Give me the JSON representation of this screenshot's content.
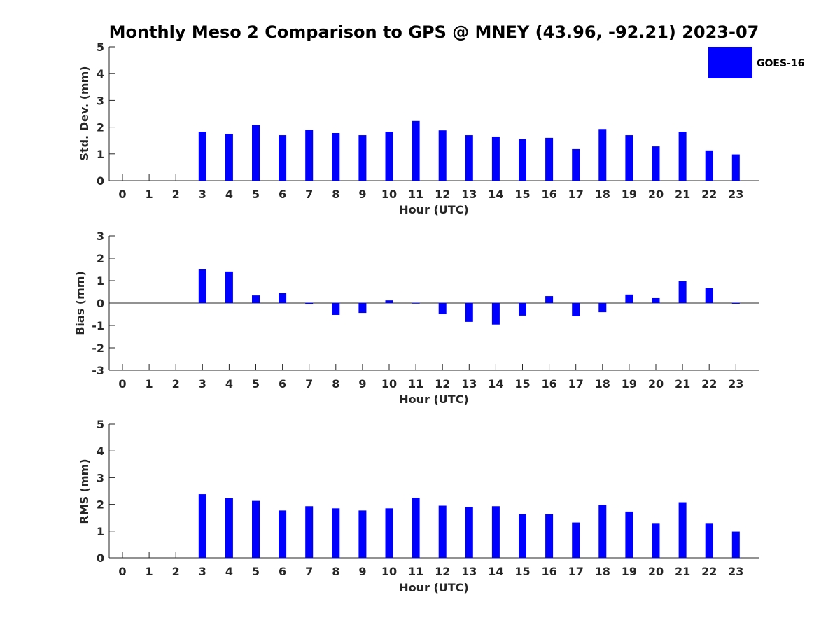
{
  "title": "Monthly Meso 2 Comparison to GPS @ MNEY (43.96, -92.21) 2023-07",
  "legend": {
    "label": "GOES-16",
    "color": "#0000ff"
  },
  "bar_color": "#0000ff",
  "chart_data": [
    {
      "type": "bar",
      "ylabel": "Std. Dev. (mm)",
      "xlabel": "Hour (UTC)",
      "ylim": [
        0,
        5
      ],
      "yticks": [
        0,
        1,
        2,
        3,
        4,
        5
      ],
      "categories": [
        "0",
        "1",
        "2",
        "3",
        "4",
        "5",
        "6",
        "7",
        "8",
        "9",
        "10",
        "11",
        "12",
        "13",
        "14",
        "15",
        "16",
        "17",
        "18",
        "19",
        "20",
        "21",
        "22",
        "23"
      ],
      "series": [
        {
          "name": "GOES-16",
          "values": [
            null,
            null,
            null,
            1.83,
            1.75,
            2.08,
            1.7,
            1.9,
            1.78,
            1.7,
            1.83,
            2.23,
            1.88,
            1.7,
            1.65,
            1.55,
            1.6,
            1.18,
            1.93,
            1.7,
            1.28,
            1.83,
            1.13,
            0.98
          ]
        }
      ]
    },
    {
      "type": "bar",
      "ylabel": "Bias (mm)",
      "xlabel": "Hour (UTC)",
      "ylim": [
        -3,
        3
      ],
      "yticks": [
        -3,
        -2,
        -1,
        0,
        1,
        2,
        3
      ],
      "categories": [
        "0",
        "1",
        "2",
        "3",
        "4",
        "5",
        "6",
        "7",
        "8",
        "9",
        "10",
        "11",
        "12",
        "13",
        "14",
        "15",
        "16",
        "17",
        "18",
        "19",
        "20",
        "21",
        "22",
        "23"
      ],
      "series": [
        {
          "name": "GOES-16",
          "values": [
            null,
            null,
            null,
            1.5,
            1.41,
            0.34,
            0.44,
            -0.06,
            -0.53,
            -0.44,
            0.12,
            0.0,
            -0.5,
            -0.84,
            -0.96,
            -0.56,
            0.31,
            -0.59,
            -0.41,
            0.38,
            0.22,
            0.97,
            0.66,
            -0.03
          ]
        }
      ]
    },
    {
      "type": "bar",
      "ylabel": "RMS (mm)",
      "xlabel": "Hour (UTC)",
      "ylim": [
        0,
        5
      ],
      "yticks": [
        0,
        1,
        2,
        3,
        4,
        5
      ],
      "categories": [
        "0",
        "1",
        "2",
        "3",
        "4",
        "5",
        "6",
        "7",
        "8",
        "9",
        "10",
        "11",
        "12",
        "13",
        "14",
        "15",
        "16",
        "17",
        "18",
        "19",
        "20",
        "21",
        "22",
        "23"
      ],
      "series": [
        {
          "name": "GOES-16",
          "values": [
            null,
            null,
            null,
            2.38,
            2.23,
            2.13,
            1.77,
            1.93,
            1.85,
            1.77,
            1.85,
            2.25,
            1.95,
            1.9,
            1.93,
            1.63,
            1.63,
            1.32,
            1.98,
            1.73,
            1.3,
            2.08,
            1.3,
            0.98
          ]
        }
      ]
    }
  ]
}
